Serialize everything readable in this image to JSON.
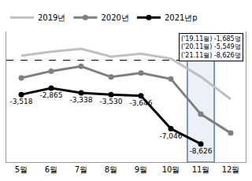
{
  "chart_data": {
    "type": "line",
    "categories": [
      "5월",
      "6월",
      "7월",
      "8월",
      "9월",
      "10월",
      "11월",
      "12월"
    ],
    "series": [
      {
        "name": "2019년",
        "color": "#c0c0c0",
        "marker": "none",
        "line_style": "solid",
        "values": [
          500,
          900,
          1200,
          400,
          700,
          200,
          -1685,
          -4000
        ]
      },
      {
        "name": "2020년",
        "color": "#7f7f7f",
        "marker": "circle",
        "line_style": "solid",
        "values": [
          -1800,
          -1100,
          -600,
          -1700,
          -1300,
          -1900,
          -5549,
          -7500
        ]
      },
      {
        "name": "2021년p",
        "color": "#000000",
        "marker": "circle",
        "line_style": "solid",
        "values": [
          -3518,
          -2865,
          -3338,
          -3530,
          -3646,
          -7046,
          -8626,
          null
        ],
        "value_labels": [
          "-3,518",
          "-2,865",
          "-3,338",
          "-3,530",
          "-3,646",
          "-7,046",
          "-8,626",
          null
        ]
      }
    ],
    "annotations": [
      "('19.11월) -1,685명",
      "('20.11월) -5,549명",
      "('21.11월) -8,626명"
    ],
    "ylim": [
      -10500,
      3000
    ],
    "yticks": [
      0
    ],
    "grid": true,
    "legend": "top",
    "data_labels": true,
    "tick_labels": "x"
  }
}
